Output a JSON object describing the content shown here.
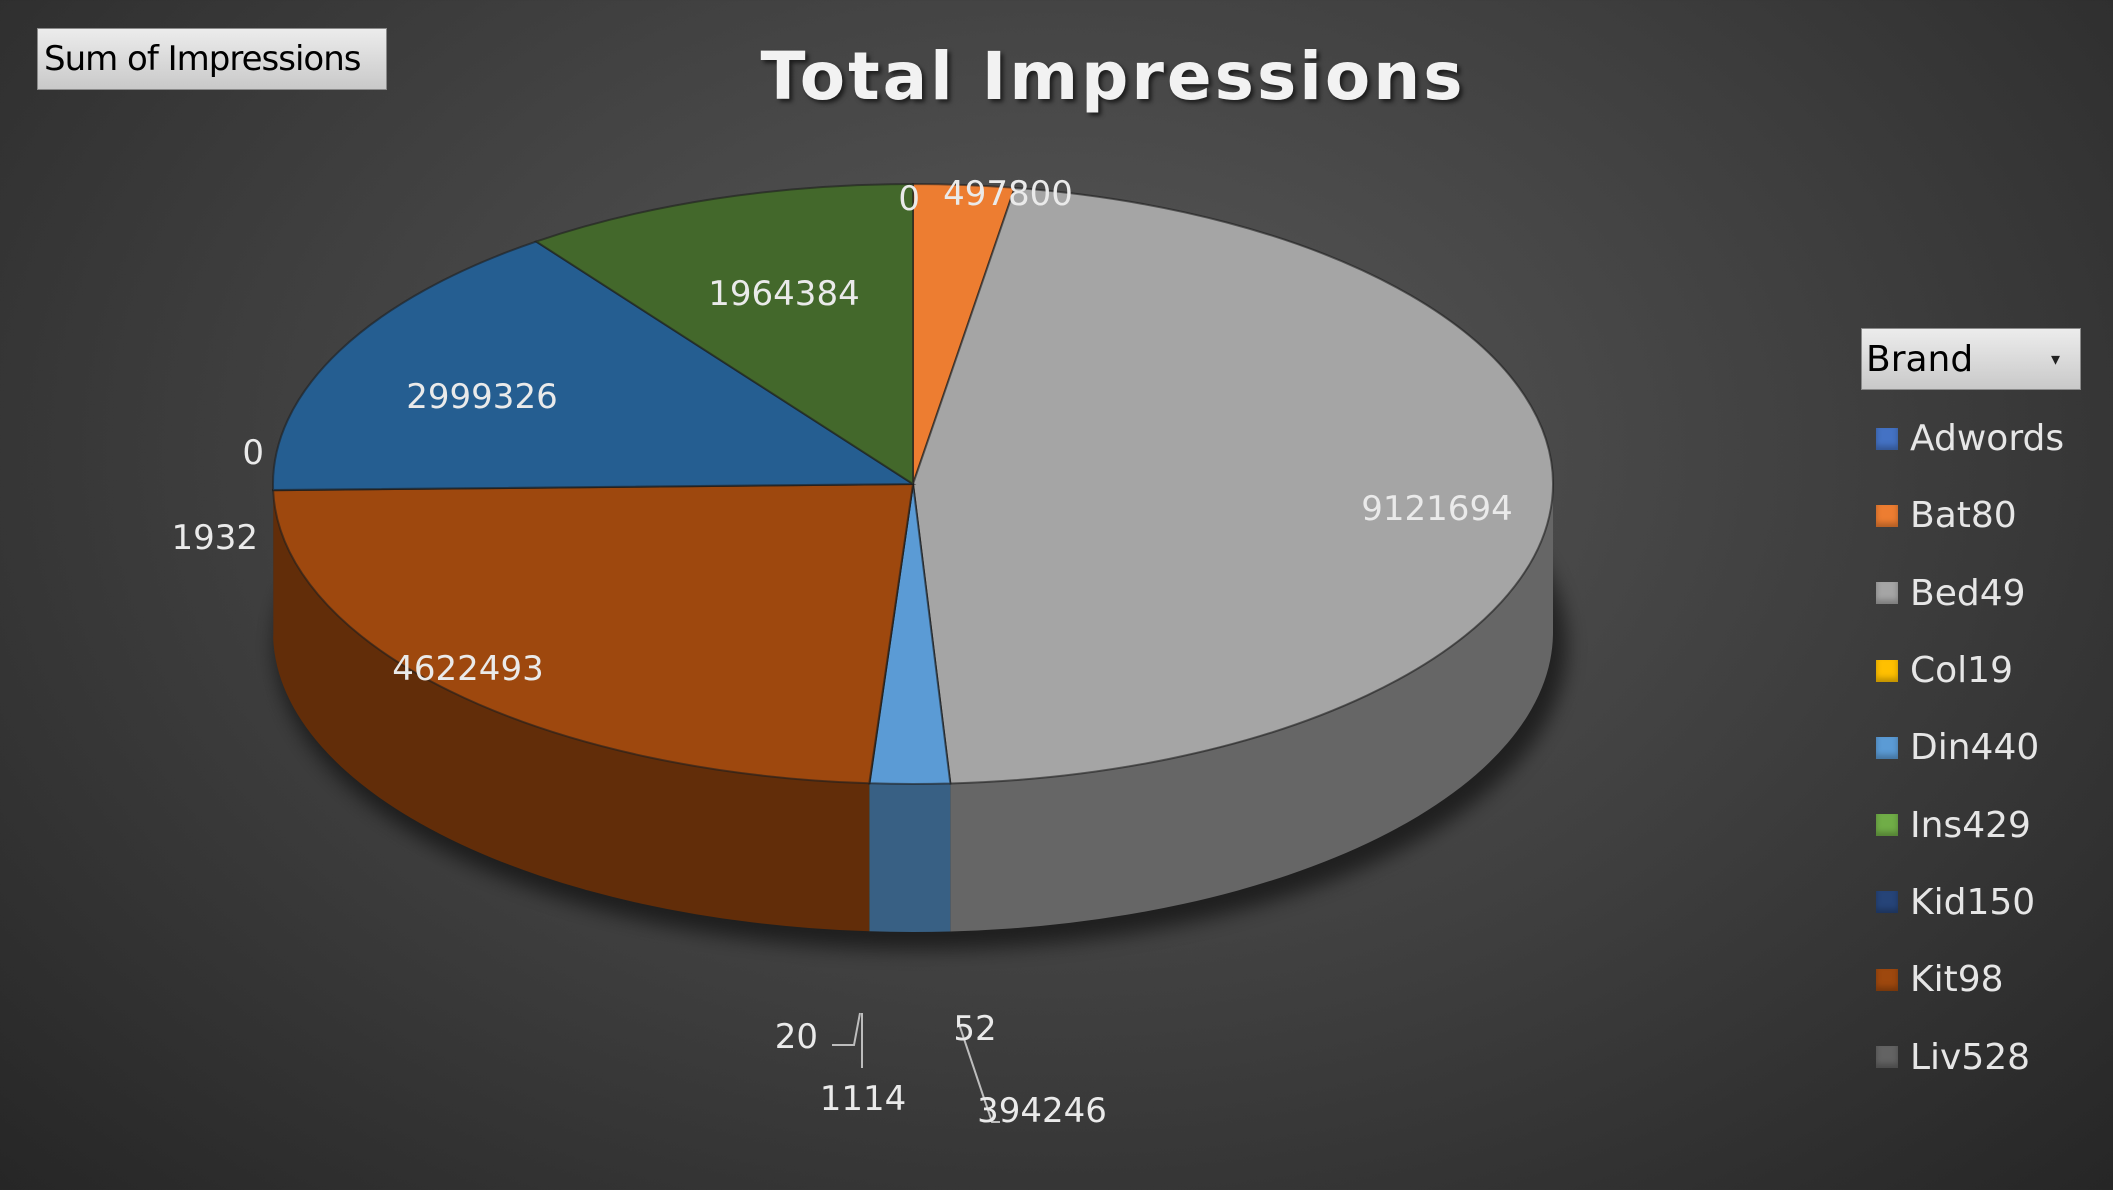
{
  "field_button": {
    "label": "Sum of Impressions"
  },
  "legend_filter": {
    "label": "Brand"
  },
  "chart_data": {
    "type": "pie",
    "title": "Total Impressions",
    "legend_position": "right",
    "slices": [
      {
        "name": "Adwords",
        "value": 0,
        "label": "0",
        "color": "#4472c4"
      },
      {
        "name": "Bat80",
        "value": 497800,
        "label": "497800",
        "color": "#ed7d31"
      },
      {
        "name": "Bed49",
        "value": 9121694,
        "label": "9121694",
        "color": "#a5a5a5"
      },
      {
        "name": "Col19",
        "value": 52,
        "label": "52",
        "color": "#ffc000"
      },
      {
        "name": "Din440",
        "value": 394246,
        "label": "394246",
        "color": "#5b9bd5"
      },
      {
        "name": "Ins429",
        "value": 1114,
        "label": "1114",
        "color": "#70ad47"
      },
      {
        "name": "Kid150",
        "value": 20,
        "label": "20",
        "color": "#264478"
      },
      {
        "name": "Kit98",
        "value": 4622493,
        "label": "4622493",
        "color": "#9e480e"
      },
      {
        "name": "Liv528",
        "value": 1932,
        "label": "1932",
        "color": "#636363"
      },
      {
        "name": "Adwords",
        "value": 0,
        "label": "0",
        "color": "#4472c4"
      },
      {
        "name": "Kid150",
        "value": 2999326,
        "label": "2999326",
        "color": "#255e91"
      },
      {
        "name": "Ins429",
        "value": 1964384,
        "label": "1964384",
        "color": "#43682b"
      }
    ],
    "legend": [
      {
        "name": "Adwords",
        "color": "#4472c4"
      },
      {
        "name": "Bat80",
        "color": "#ed7d31"
      },
      {
        "name": "Bed49",
        "color": "#a5a5a5"
      },
      {
        "name": "Col19",
        "color": "#ffc000"
      },
      {
        "name": "Din440",
        "color": "#5b9bd5"
      },
      {
        "name": "Ins429",
        "color": "#70ad47"
      },
      {
        "name": "Kid150",
        "color": "#264478"
      },
      {
        "name": "Kit98",
        "color": "#9e480e"
      },
      {
        "name": "Liv528",
        "color": "#636363"
      }
    ]
  }
}
